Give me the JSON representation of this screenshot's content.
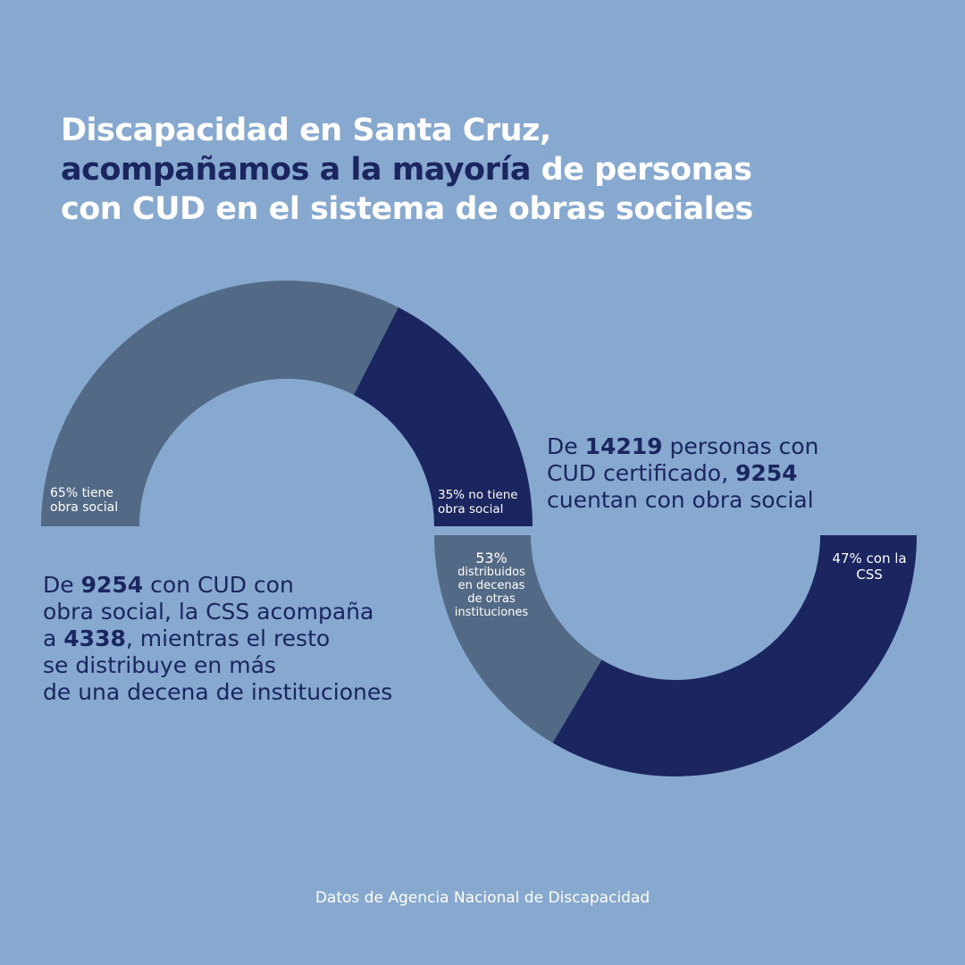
{
  "title": {
    "line1": "Discapacidad en Santa Cruz,",
    "line2_highlight": "acompañamos a la mayoría",
    "line2_rest": " de personas",
    "line3": "con CUD en el sistema de obras sociales"
  },
  "colors": {
    "background": "#87a9d0",
    "slate": "#536a86",
    "navy": "#1b2560",
    "white": "#ffffff"
  },
  "chart_data": [
    {
      "type": "pie",
      "variant": "half-donut (upper)",
      "title": "Personas con CUD certificado",
      "slices": [
        {
          "label": "65% tiene obra social",
          "value": 65,
          "color": "#536a86"
        },
        {
          "label": "35% no tiene obra social",
          "value": 35,
          "color": "#1b2560"
        }
      ],
      "total": 14219
    },
    {
      "type": "pie",
      "variant": "half-donut (lower)",
      "title": "Personas con CUD y obra social",
      "slices": [
        {
          "label": "53% distribuidos en decenas de otras instituciones",
          "value": 53,
          "color": "#536a86"
        },
        {
          "label": "47% con la CSS",
          "value": 47,
          "color": "#1b2560"
        }
      ],
      "total": 9254
    }
  ],
  "labels": {
    "top_left_1": "65% tiene",
    "top_left_2": "obra social",
    "top_right_1": "35% no tiene",
    "top_right_2": "obra social",
    "bottom_left_pct": "53%",
    "bottom_left_1": "distribuidos",
    "bottom_left_2": "en decenas",
    "bottom_left_3": "de otras",
    "bottom_left_4": "instituciones",
    "bottom_right_1": "47% con la",
    "bottom_right_2": "CSS"
  },
  "blurb_right": {
    "a": "De ",
    "b_bold": "14219",
    "c": " personas con",
    "d": "CUD certificado, ",
    "e_bold": "9254",
    "f": "cuentan con obra social"
  },
  "blurb_left": {
    "a": "De ",
    "b_bold": "9254",
    "c": " con CUD con",
    "d": "obra social, la CSS acompaña",
    "e": "a ",
    "f_bold": "4338",
    "g": ", mientras el resto",
    "h": "se distribuye en más",
    "i": "de una decena de instituciones"
  },
  "footer": "Datos de Agencia Nacional de Discapacidad"
}
